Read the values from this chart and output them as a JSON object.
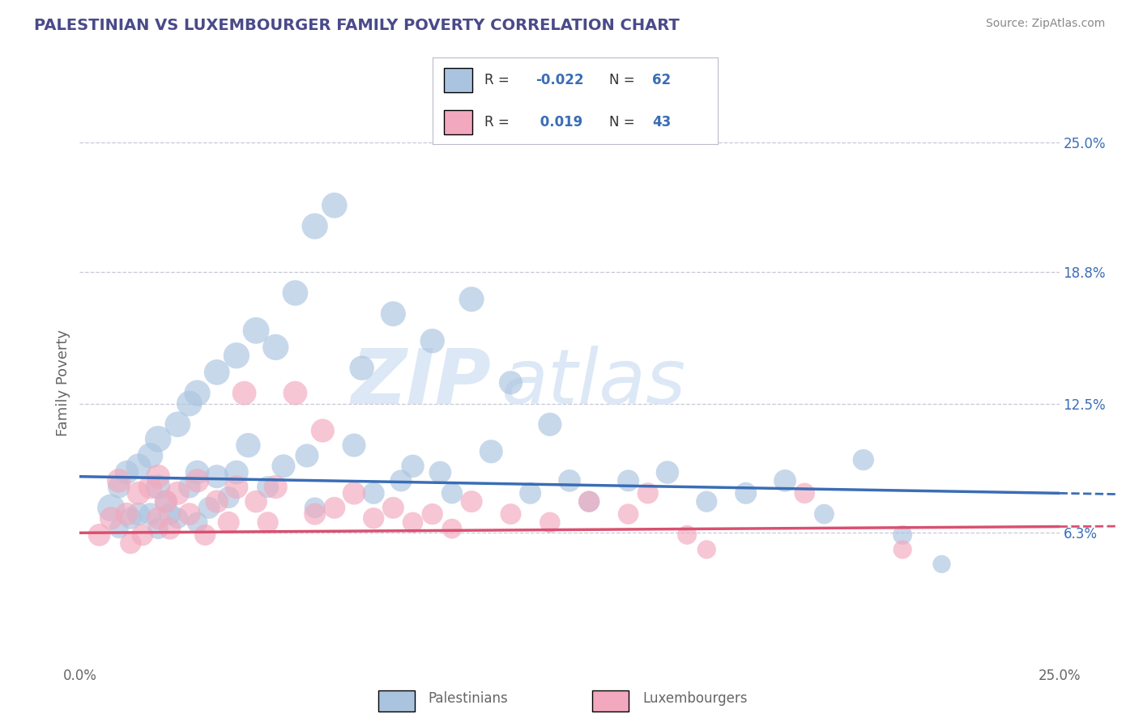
{
  "title": "PALESTINIAN VS LUXEMBOURGER FAMILY POVERTY CORRELATION CHART",
  "source_text": "Source: ZipAtlas.com",
  "ylabel": "Family Poverty",
  "xlim": [
    0.0,
    0.25
  ],
  "ylim": [
    0.0,
    0.27
  ],
  "xtick_positions": [
    0.0,
    0.25
  ],
  "xtick_labels": [
    "0.0%",
    "25.0%"
  ],
  "ytick_vals_right": [
    0.063,
    0.125,
    0.188,
    0.25
  ],
  "ytick_labels_right": [
    "6.3%",
    "12.5%",
    "18.8%",
    "25.0%"
  ],
  "blue_R": -0.022,
  "blue_N": 62,
  "pink_R": 0.019,
  "pink_N": 43,
  "blue_color": "#aac4e0",
  "pink_color": "#f2a8be",
  "blue_line_color": "#3a6db5",
  "pink_line_color": "#d95070",
  "blue_line_y0": 0.09,
  "blue_line_y1": 0.082,
  "pink_line_y0": 0.063,
  "pink_line_y1": 0.066,
  "background_color": "#ffffff",
  "grid_color": "#c8c8d8",
  "title_color": "#4a4a8a",
  "watermark_color": "#dce8f5",
  "source_color": "#888888",
  "blue_scatter_x": [
    0.008,
    0.01,
    0.01,
    0.012,
    0.013,
    0.015,
    0.015,
    0.018,
    0.018,
    0.02,
    0.02,
    0.02,
    0.022,
    0.023,
    0.025,
    0.025,
    0.028,
    0.028,
    0.03,
    0.03,
    0.03,
    0.033,
    0.035,
    0.035,
    0.038,
    0.04,
    0.04,
    0.043,
    0.045,
    0.048,
    0.05,
    0.052,
    0.055,
    0.058,
    0.06,
    0.06,
    0.065,
    0.07,
    0.072,
    0.075,
    0.08,
    0.082,
    0.085,
    0.09,
    0.092,
    0.095,
    0.1,
    0.105,
    0.11,
    0.115,
    0.12,
    0.125,
    0.13,
    0.14,
    0.15,
    0.16,
    0.17,
    0.18,
    0.19,
    0.2,
    0.21,
    0.22
  ],
  "blue_scatter_y": [
    0.075,
    0.085,
    0.065,
    0.092,
    0.07,
    0.095,
    0.072,
    0.1,
    0.072,
    0.108,
    0.085,
    0.065,
    0.078,
    0.072,
    0.115,
    0.07,
    0.125,
    0.085,
    0.13,
    0.092,
    0.068,
    0.075,
    0.14,
    0.09,
    0.08,
    0.148,
    0.092,
    0.105,
    0.16,
    0.085,
    0.152,
    0.095,
    0.178,
    0.1,
    0.21,
    0.075,
    0.22,
    0.105,
    0.142,
    0.082,
    0.168,
    0.088,
    0.095,
    0.155,
    0.092,
    0.082,
    0.175,
    0.102,
    0.135,
    0.082,
    0.115,
    0.088,
    0.078,
    0.088,
    0.092,
    0.078,
    0.082,
    0.088,
    0.072,
    0.098,
    0.062,
    0.048
  ],
  "blue_scatter_sizes": [
    600,
    400,
    300,
    450,
    380,
    500,
    420,
    520,
    400,
    550,
    480,
    350,
    400,
    380,
    520,
    350,
    520,
    400,
    540,
    460,
    350,
    380,
    520,
    440,
    380,
    540,
    460,
    480,
    560,
    380,
    540,
    440,
    520,
    440,
    540,
    350,
    520,
    440,
    480,
    380,
    500,
    380,
    420,
    480,
    400,
    360,
    500,
    440,
    440,
    380,
    440,
    400,
    360,
    380,
    420,
    360,
    380,
    400,
    320,
    360,
    300,
    260
  ],
  "pink_scatter_x": [
    0.005,
    0.008,
    0.01,
    0.012,
    0.013,
    0.015,
    0.016,
    0.018,
    0.02,
    0.02,
    0.022,
    0.023,
    0.025,
    0.028,
    0.03,
    0.032,
    0.035,
    0.038,
    0.04,
    0.042,
    0.045,
    0.048,
    0.05,
    0.055,
    0.06,
    0.062,
    0.065,
    0.07,
    0.075,
    0.08,
    0.085,
    0.09,
    0.095,
    0.1,
    0.11,
    0.12,
    0.13,
    0.14,
    0.145,
    0.155,
    0.16,
    0.185,
    0.21
  ],
  "pink_scatter_y": [
    0.062,
    0.07,
    0.088,
    0.072,
    0.058,
    0.082,
    0.062,
    0.085,
    0.09,
    0.07,
    0.078,
    0.065,
    0.082,
    0.072,
    0.088,
    0.062,
    0.078,
    0.068,
    0.085,
    0.13,
    0.078,
    0.068,
    0.085,
    0.13,
    0.072,
    0.112,
    0.075,
    0.082,
    0.07,
    0.075,
    0.068,
    0.072,
    0.065,
    0.078,
    0.072,
    0.068,
    0.078,
    0.072,
    0.082,
    0.062,
    0.055,
    0.082,
    0.055
  ],
  "pink_scatter_sizes": [
    400,
    420,
    460,
    420,
    360,
    440,
    380,
    450,
    460,
    400,
    420,
    380,
    440,
    400,
    450,
    360,
    420,
    380,
    440,
    460,
    400,
    360,
    440,
    460,
    380,
    440,
    380,
    420,
    360,
    380,
    340,
    360,
    320,
    380,
    350,
    340,
    360,
    340,
    360,
    300,
    280,
    340,
    280
  ]
}
